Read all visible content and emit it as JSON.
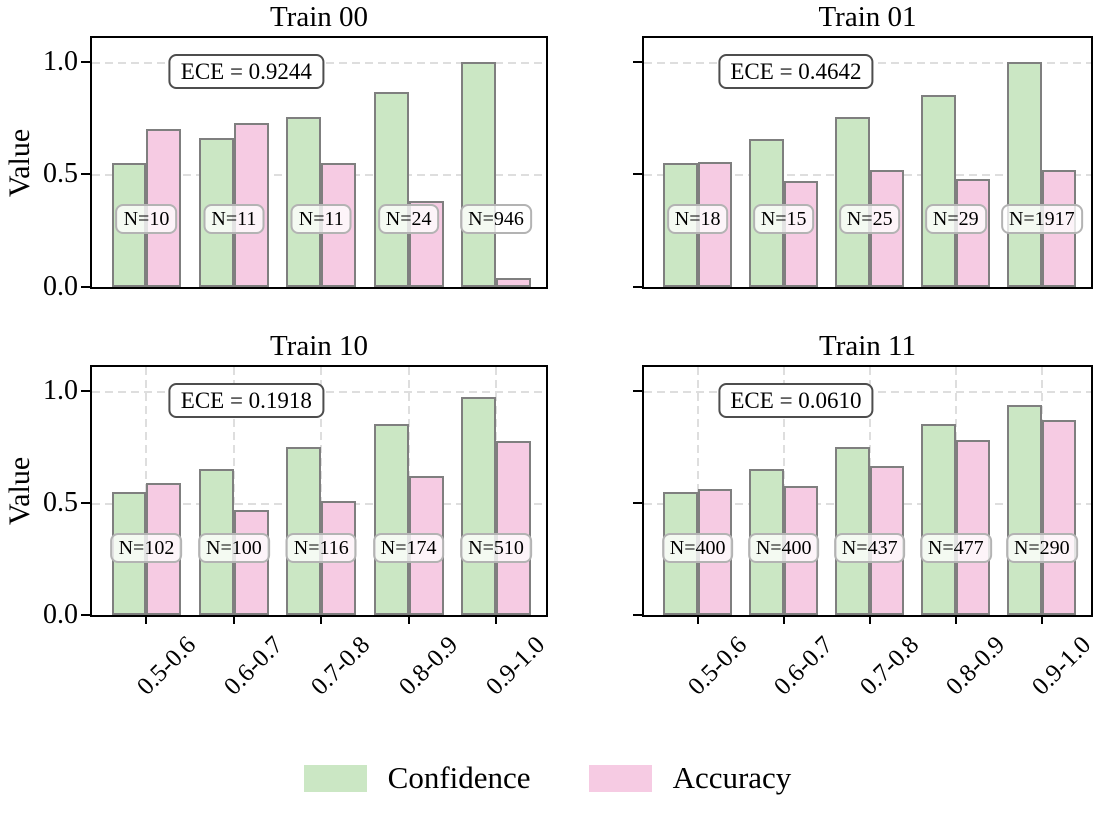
{
  "figure": {
    "ylabel": "Value",
    "ytick_labels": [
      "0.0",
      "0.5",
      "1.0"
    ],
    "colors": {
      "confidence_fill": "#cbe7c4",
      "accuracy_fill": "#f6cbe3",
      "bar_edge": "#7f7f7f",
      "grid": "#dedede",
      "spine": "#000000",
      "nbox_border": "#b3b3b3",
      "ece_border": "#4d4d4d"
    },
    "legend": {
      "position": "bottom-center",
      "items": [
        {
          "label": "Confidence",
          "color": "#cbe7c4"
        },
        {
          "label": "Accuracy",
          "color": "#f6cbe3"
        }
      ]
    }
  },
  "chart_data": [
    {
      "type": "bar",
      "title": "Train 00",
      "annotation": "ECE = 0.9244",
      "categories": [
        "0.5-0.6",
        "0.6-0.7",
        "0.7-0.8",
        "0.8-0.9",
        "0.9-1.0"
      ],
      "series": [
        {
          "name": "Confidence",
          "values": [
            0.55,
            0.66,
            0.755,
            0.865,
            1.0
          ]
        },
        {
          "name": "Accuracy",
          "values": [
            0.7,
            0.73,
            0.55,
            0.38,
            0.04
          ]
        }
      ],
      "bin_counts": [
        "N=10",
        "N=11",
        "N=11",
        "N=24",
        "N=946"
      ],
      "ylabel": "Value",
      "ylim": [
        0,
        1.105
      ],
      "yticks": [
        0.0,
        0.5,
        1.0
      ],
      "grid": "y",
      "show_xticklabels": false,
      "show_yticklabels": true
    },
    {
      "type": "bar",
      "title": "Train 01",
      "annotation": "ECE = 0.4642",
      "categories": [
        "0.5-0.6",
        "0.6-0.7",
        "0.7-0.8",
        "0.8-0.9",
        "0.9-1.0"
      ],
      "series": [
        {
          "name": "Confidence",
          "values": [
            0.55,
            0.655,
            0.755,
            0.85,
            1.0
          ]
        },
        {
          "name": "Accuracy",
          "values": [
            0.555,
            0.47,
            0.52,
            0.48,
            0.52
          ]
        }
      ],
      "bin_counts": [
        "N=18",
        "N=15",
        "N=25",
        "N=29",
        "N=1917"
      ],
      "ylabel": "",
      "ylim": [
        0,
        1.105
      ],
      "yticks": [
        0.0,
        0.5,
        1.0
      ],
      "grid": "y",
      "show_xticklabels": false,
      "show_yticklabels": false
    },
    {
      "type": "bar",
      "title": "Train 10",
      "annotation": "ECE = 0.1918",
      "categories": [
        "0.5-0.6",
        "0.6-0.7",
        "0.7-0.8",
        "0.8-0.9",
        "0.9-1.0"
      ],
      "series": [
        {
          "name": "Confidence",
          "values": [
            0.55,
            0.65,
            0.75,
            0.85,
            0.97
          ]
        },
        {
          "name": "Accuracy",
          "values": [
            0.59,
            0.47,
            0.51,
            0.62,
            0.775
          ]
        }
      ],
      "bin_counts": [
        "N=102",
        "N=100",
        "N=116",
        "N=174",
        "N=510"
      ],
      "ylabel": "Value",
      "ylim": [
        0,
        1.105
      ],
      "yticks": [
        0.0,
        0.5,
        1.0
      ],
      "grid": "xy",
      "show_xticklabels": true,
      "show_yticklabels": true
    },
    {
      "type": "bar",
      "title": "Train 11",
      "annotation": "ECE = 0.0610",
      "categories": [
        "0.5-0.6",
        "0.6-0.7",
        "0.7-0.8",
        "0.8-0.9",
        "0.9-1.0"
      ],
      "series": [
        {
          "name": "Confidence",
          "values": [
            0.55,
            0.65,
            0.75,
            0.85,
            0.935
          ]
        },
        {
          "name": "Accuracy",
          "values": [
            0.56,
            0.575,
            0.665,
            0.78,
            0.87
          ]
        }
      ],
      "bin_counts": [
        "N=400",
        "N=400",
        "N=437",
        "N=477",
        "N=290"
      ],
      "ylabel": "",
      "ylim": [
        0,
        1.105
      ],
      "yticks": [
        0.0,
        0.5,
        1.0
      ],
      "grid": "xy",
      "show_xticklabels": true,
      "show_yticklabels": false
    }
  ]
}
